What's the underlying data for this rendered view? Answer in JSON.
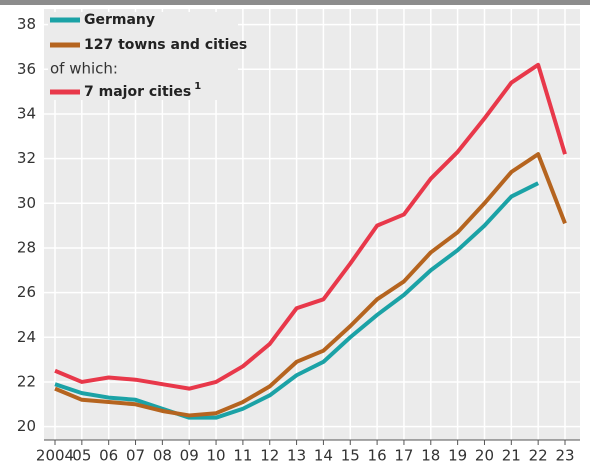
{
  "chart_data": {
    "type": "line",
    "categories": [
      "2004",
      "05",
      "06",
      "07",
      "08",
      "09",
      "10",
      "11",
      "12",
      "13",
      "14",
      "15",
      "16",
      "17",
      "18",
      "19",
      "20",
      "21",
      "22",
      "23"
    ],
    "series": [
      {
        "name": "Germany",
        "color": "#1ba2a6",
        "values": [
          21.9,
          21.5,
          21.3,
          21.2,
          20.8,
          20.4,
          20.4,
          20.8,
          21.4,
          22.3,
          22.9,
          24.0,
          25.0,
          25.9,
          27.0,
          27.9,
          29.0,
          30.3,
          30.9,
          null
        ]
      },
      {
        "name": "127 towns and cities",
        "color": "#b5641f",
        "values": [
          21.7,
          21.2,
          21.1,
          21.0,
          20.7,
          20.5,
          20.6,
          21.1,
          21.8,
          22.9,
          23.4,
          24.5,
          25.7,
          26.5,
          27.8,
          28.7,
          30.0,
          31.4,
          32.2,
          29.1
        ]
      },
      {
        "name": "7 major cities",
        "color": "#e8384a",
        "values": [
          22.5,
          22.0,
          22.2,
          22.1,
          21.9,
          21.7,
          22.0,
          22.7,
          23.7,
          25.3,
          25.7,
          27.3,
          29.0,
          29.5,
          31.1,
          32.3,
          33.8,
          35.4,
          36.2,
          32.2
        ]
      }
    ],
    "legend_subheading": "of which:",
    "legend_superscript": "1",
    "ylim": [
      19.4,
      38.7
    ],
    "yticks": [
      20,
      22,
      24,
      26,
      28,
      30,
      32,
      34,
      36,
      38
    ],
    "grid": true
  }
}
